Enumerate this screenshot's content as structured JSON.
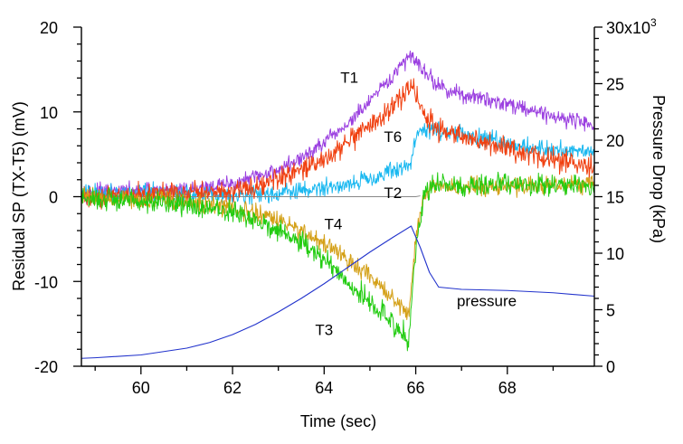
{
  "chart_data": {
    "type": "line",
    "title": "",
    "xlabel": "Time (sec)",
    "ylabel": "Residual SP (TX-T5) (mV)",
    "y2label": "Pressure Drop (kPa)",
    "xlim": [
      58.7,
      69.9
    ],
    "ylim": [
      -20,
      20
    ],
    "y2lim": [
      0,
      30000
    ],
    "x_ticks": [
      60,
      62,
      64,
      66,
      68
    ],
    "y_ticks": [
      -20,
      -10,
      0,
      10,
      20
    ],
    "y2_ticks": [
      0,
      5,
      10,
      15,
      20,
      25,
      "30x10"
    ],
    "y2_tick_exponent": "3",
    "grid": false,
    "series": [
      {
        "name": "T1",
        "axis": "left",
        "color": "#9b40e0",
        "x": [
          58.7,
          60.0,
          61.0,
          62.0,
          62.5,
          63.0,
          63.5,
          64.0,
          64.5,
          65.0,
          65.5,
          65.9,
          66.2,
          66.5,
          67.0,
          67.5,
          68.0,
          68.5,
          69.0,
          69.5,
          69.9
        ],
        "y": [
          0.5,
          0.6,
          0.8,
          1.5,
          2.3,
          3.2,
          4.5,
          6.3,
          8.5,
          11.2,
          14.2,
          16.8,
          14.8,
          13.0,
          12.0,
          11.5,
          11.0,
          10.3,
          9.5,
          9.0,
          8.5
        ],
        "noise": 0.8
      },
      {
        "name": "T6",
        "axis": "left",
        "color": "#1ab8f0",
        "x": [
          58.7,
          60.0,
          61.0,
          62.0,
          62.5,
          63.0,
          63.5,
          64.0,
          64.5,
          65.0,
          65.5,
          65.9,
          66.0,
          66.3,
          66.8,
          67.5,
          68.0,
          68.5,
          69.0,
          69.5,
          69.9
        ],
        "y": [
          0.5,
          0.4,
          0.3,
          0.3,
          0.3,
          0.4,
          0.7,
          1.0,
          1.5,
          2.2,
          3.0,
          3.8,
          7.5,
          8.0,
          7.5,
          6.8,
          6.3,
          5.8,
          5.5,
          5.5,
          5.5
        ],
        "noise": 0.9
      },
      {
        "name": "T2",
        "axis": "left",
        "color": "#888888",
        "x": [
          58.7,
          62.0,
          64.0,
          66.0,
          66.1
        ],
        "y": [
          0.0,
          0.0,
          0.0,
          0.0,
          0.1
        ],
        "noise": 0.0
      },
      {
        "name": "",
        "axis": "left",
        "color": "#f04010",
        "x": [
          58.7,
          60.0,
          61.0,
          62.0,
          62.5,
          63.0,
          63.5,
          64.0,
          64.5,
          65.0,
          65.5,
          65.9,
          66.2,
          66.5,
          67.0,
          67.5,
          68.0,
          68.5,
          69.0,
          69.5,
          69.9
        ],
        "y": [
          0.0,
          0.2,
          0.5,
          0.8,
          1.3,
          2.0,
          3.0,
          4.5,
          6.2,
          8.2,
          10.5,
          13.3,
          9.5,
          8.0,
          7.0,
          6.3,
          5.5,
          5.0,
          4.5,
          3.8,
          3.3
        ],
        "noise": 1.1
      },
      {
        "name": "T4",
        "axis": "left",
        "color": "#d4a017",
        "x": [
          58.7,
          60.0,
          61.0,
          62.0,
          62.5,
          63.0,
          63.5,
          64.0,
          64.5,
          65.0,
          65.5,
          65.85,
          66.0,
          66.2,
          66.5,
          67.0,
          67.5,
          68.0,
          68.5,
          69.0,
          69.5,
          69.9
        ],
        "y": [
          0.0,
          -0.3,
          -0.7,
          -1.3,
          -2.0,
          -2.8,
          -4.0,
          -5.5,
          -7.5,
          -9.5,
          -12.0,
          -14.0,
          -5.0,
          0.5,
          1.3,
          1.2,
          1.2,
          1.2,
          1.3,
          1.4,
          1.5,
          1.5
        ],
        "noise": 0.9
      },
      {
        "name": "T3",
        "axis": "left",
        "color": "#22cc11",
        "x": [
          58.7,
          60.0,
          61.0,
          62.0,
          62.5,
          63.0,
          63.5,
          64.0,
          64.5,
          65.0,
          65.5,
          65.85,
          66.0,
          66.2,
          66.5,
          67.0,
          67.5,
          68.0,
          68.5,
          69.0,
          69.5,
          69.9
        ],
        "y": [
          -0.3,
          -0.5,
          -1.0,
          -1.8,
          -2.8,
          -4.0,
          -5.5,
          -7.5,
          -10.0,
          -12.5,
          -15.0,
          -17.0,
          -6.0,
          0.5,
          1.5,
          1.3,
          1.3,
          1.3,
          1.3,
          1.3,
          1.3,
          1.3
        ],
        "noise": 1.1
      },
      {
        "name": "pressure",
        "axis": "right",
        "color": "#2233cc",
        "x": [
          58.7,
          59.0,
          60.0,
          61.0,
          61.5,
          62.0,
          62.5,
          63.0,
          63.5,
          64.0,
          64.5,
          65.0,
          65.5,
          65.9,
          66.1,
          66.3,
          66.5,
          67.0,
          68.0,
          69.0,
          69.9
        ],
        "y": [
          700,
          750,
          1000,
          1600,
          2100,
          2800,
          3700,
          4800,
          6000,
          7300,
          8700,
          10100,
          11400,
          12400,
          10500,
          8300,
          7000,
          6800,
          6700,
          6500,
          6200
        ],
        "noise": 0.0
      }
    ],
    "annotations": [
      {
        "text": "T1",
        "x": 64.55,
        "y": 14.1
      },
      {
        "text": "T6",
        "x": 65.5,
        "y": 7.1
      },
      {
        "text": "T2",
        "x": 65.5,
        "y": 0.5
      },
      {
        "text": "T4",
        "x": 64.2,
        "y": -3.2
      },
      {
        "text": "T3",
        "x": 64.0,
        "y": -15.7
      },
      {
        "text": "pressure",
        "x": 67.55,
        "y2": 5800
      }
    ]
  }
}
